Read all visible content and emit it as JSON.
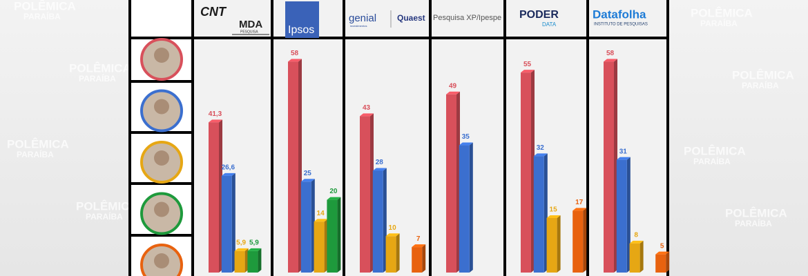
{
  "chart_data": {
    "type": "bar3d",
    "categories": [
      [
        "CNT",
        "MDA",
        "PESQUISA"
      ],
      [
        "Ipsos"
      ],
      [
        "genial",
        "investimentos",
        "Quaest"
      ],
      [
        "Pesquisa XP/Ipespe"
      ],
      [
        "PODER",
        "DATA"
      ],
      [
        "Datafolha",
        "INSTITUTO DE PESQUISAS"
      ]
    ],
    "series": [
      {
        "color": "#d8505b",
        "values": [
          41.3,
          58,
          43,
          49,
          55,
          58
        ],
        "value_labels": [
          "41,3",
          "58",
          "43",
          "49",
          "55",
          "58"
        ]
      },
      {
        "color": "#3b6fcf",
        "values": [
          26.6,
          25,
          28,
          35,
          32,
          31
        ],
        "value_labels": [
          "26,6",
          "25",
          "28",
          "35",
          "32",
          "31"
        ]
      },
      {
        "color": "#e6a714",
        "values": [
          5.9,
          14,
          10,
          null,
          15,
          8
        ],
        "value_labels": [
          "5,9",
          "14",
          "10",
          null,
          "15",
          "8"
        ]
      },
      {
        "color": "#1e9a3c",
        "values": [
          5.9,
          20,
          null,
          null,
          null,
          null
        ],
        "value_labels": [
          "5,9",
          "20",
          null,
          null,
          null,
          null
        ]
      },
      {
        "color": "#e8620f",
        "values": [
          null,
          null,
          7,
          null,
          17,
          5
        ],
        "value_labels": [
          null,
          null,
          "7",
          null,
          "17",
          "5"
        ]
      }
    ]
  },
  "watermark": [
    "POLÊMICA",
    "PARAÍBA"
  ]
}
